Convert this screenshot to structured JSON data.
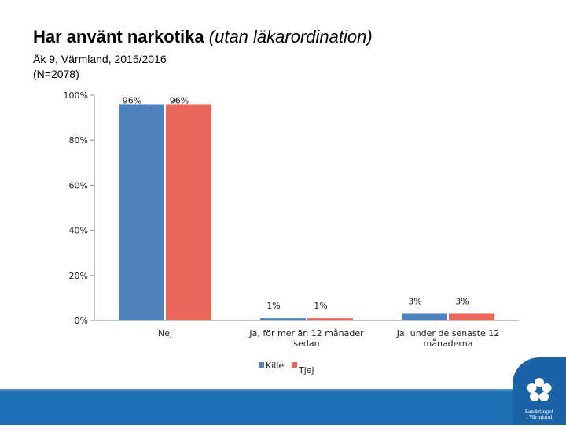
{
  "slide": {
    "title_main": "Har använt narkotika",
    "title_sub": "(utan läkarordination)",
    "subtitle_line1": "Åk 9, Värmland, 2015/2016",
    "subtitle_line2": "(N=2078)"
  },
  "footer": {
    "logo_icon": "flower-emblem-icon",
    "logo_line1": "Landstinget",
    "logo_line2": "i Värmland",
    "bar_color": "#1f6fb4"
  },
  "chart_data": {
    "type": "bar",
    "categories": [
      [
        "Nej"
      ],
      [
        "Ja, för mer än 12 månader",
        "sedan"
      ],
      [
        "Ja, under de senaste 12",
        "månaderna"
      ]
    ],
    "series": [
      {
        "name": "Kille",
        "values": [
          96,
          1,
          3
        ],
        "labels": [
          "96%",
          "1%",
          "3%"
        ],
        "color": "#4f81bd"
      },
      {
        "name": "Tjej",
        "values": [
          96,
          1,
          3
        ],
        "labels": [
          "96%",
          "1%",
          "3%"
        ],
        "color": "#e8675a"
      }
    ],
    "yticks": [
      0,
      20,
      40,
      60,
      80,
      100
    ],
    "ytick_labels": [
      "0%",
      "20%",
      "40%",
      "60%",
      "80%",
      "100%"
    ],
    "ylim": [
      0,
      100
    ],
    "grid": false,
    "legend_position": "bottom"
  }
}
